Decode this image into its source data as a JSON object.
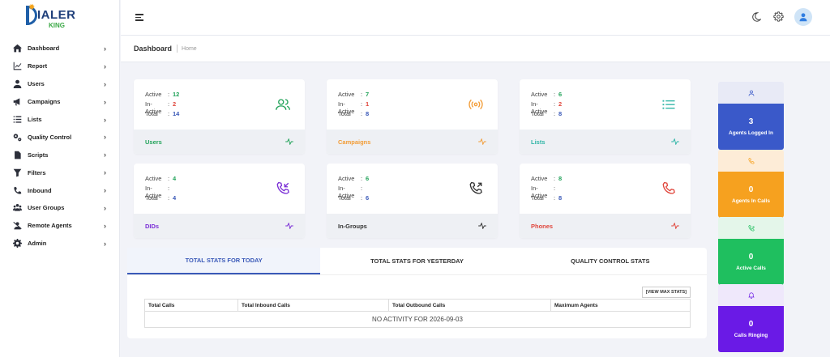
{
  "logo": {
    "main": "IALER",
    "sub": "KING"
  },
  "sidebar": {
    "items": [
      {
        "label": "Dashboard"
      },
      {
        "label": "Report"
      },
      {
        "label": "Users"
      },
      {
        "label": "Campaigns"
      },
      {
        "label": "Lists"
      },
      {
        "label": "Quality Control"
      },
      {
        "label": "Scripts"
      },
      {
        "label": "Filters"
      },
      {
        "label": "Inbound"
      },
      {
        "label": "User Groups"
      },
      {
        "label": "Remote Agents"
      },
      {
        "label": "Admin"
      }
    ],
    "chevron": "›"
  },
  "header": {
    "page_title": "Dashboard",
    "breadcrumb_home": "Home"
  },
  "cards": [
    {
      "name": "Users",
      "active": "12",
      "inactive": "2",
      "total": "14",
      "color": "#22a35a"
    },
    {
      "name": "Campaigns",
      "active": "7",
      "inactive": "1",
      "total": "8",
      "color": "#f29d38"
    },
    {
      "name": "Lists",
      "active": "6",
      "inactive": "2",
      "total": "8",
      "color": "#2fb5a6"
    },
    {
      "name": "DIDs",
      "active": "4",
      "inactive": "",
      "total": "4",
      "color": "#7b2fd6"
    },
    {
      "name": "In-Groups",
      "active": "6",
      "inactive": "",
      "total": "6",
      "color": "#333333"
    },
    {
      "name": "Phones",
      "active": "8",
      "inactive": "",
      "total": "8",
      "color": "#e0463c"
    }
  ],
  "stat_labels": {
    "active": "Active",
    "inactive": "In-Active",
    "total": "Total",
    "colon": ":"
  },
  "stats": {
    "tabs": [
      "TOTAL STATS FOR TODAY",
      "TOTAL STATS FOR YESTERDAY",
      "QUALITY CONTROL STATS"
    ],
    "active_tab": 0,
    "view_max_label": "[VIEW MAX STATS]",
    "columns": [
      "Total Calls",
      "Total Inbound Calls",
      "Total Outbound Calls",
      "Maximum Agents"
    ],
    "empty_message": "NO ACTIVITY FOR 2026-09-03"
  },
  "right_boxes": [
    {
      "value": "3",
      "label": "Agents Logged In",
      "color": "#3a59c9",
      "bg": "#e8eaf6"
    },
    {
      "value": "0",
      "label": "Agents In Calls",
      "color": "#f6a11f",
      "bg": "#fdecd7"
    },
    {
      "value": "0",
      "label": "Active Calls",
      "color": "#1fbf5f",
      "bg": "#e4f6ea"
    },
    {
      "value": "0",
      "label": "Calls Ringing",
      "color": "#6a1ae6",
      "bg": "#efe8fb"
    }
  ]
}
